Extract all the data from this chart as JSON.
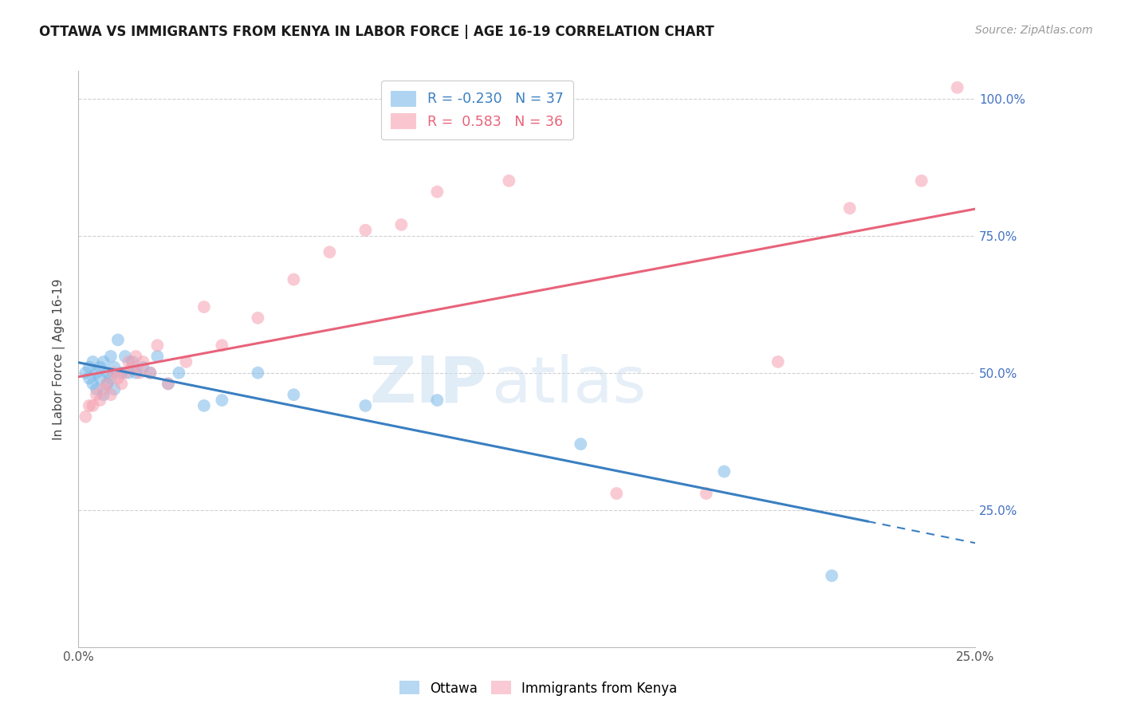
{
  "title": "OTTAWA VS IMMIGRANTS FROM KENYA IN LABOR FORCE | AGE 16-19 CORRELATION CHART",
  "source": "Source: ZipAtlas.com",
  "ylabel": "In Labor Force | Age 16-19",
  "xlim": [
    0.0,
    0.25
  ],
  "ylim": [
    0.0,
    1.05
  ],
  "ottawa_R": -0.23,
  "ottawa_N": 37,
  "kenya_R": 0.583,
  "kenya_N": 36,
  "ottawa_color": "#7ab8e8",
  "kenya_color": "#f5a0b0",
  "ottawa_line_color": "#3a7fc1",
  "kenya_line_color": "#e8637a",
  "watermark_zip": "ZIP",
  "watermark_atlas": "atlas",
  "grid_color": "#d0d0d0",
  "background_color": "#ffffff",
  "ottawa_scatter_x": [
    0.002,
    0.003,
    0.003,
    0.004,
    0.004,
    0.005,
    0.005,
    0.006,
    0.006,
    0.007,
    0.007,
    0.008,
    0.008,
    0.009,
    0.009,
    0.01,
    0.01,
    0.011,
    0.012,
    0.013,
    0.014,
    0.015,
    0.016,
    0.018,
    0.02,
    0.022,
    0.025,
    0.028,
    0.035,
    0.04,
    0.05,
    0.06,
    0.08,
    0.1,
    0.14,
    0.18,
    0.21
  ],
  "ottawa_scatter_y": [
    0.5,
    0.51,
    0.49,
    0.52,
    0.48,
    0.5,
    0.47,
    0.51,
    0.49,
    0.52,
    0.46,
    0.5,
    0.48,
    0.53,
    0.49,
    0.51,
    0.47,
    0.56,
    0.5,
    0.53,
    0.5,
    0.52,
    0.5,
    0.51,
    0.5,
    0.53,
    0.48,
    0.5,
    0.44,
    0.45,
    0.5,
    0.46,
    0.44,
    0.45,
    0.37,
    0.32,
    0.13
  ],
  "kenya_scatter_x": [
    0.002,
    0.003,
    0.004,
    0.005,
    0.006,
    0.007,
    0.008,
    0.009,
    0.01,
    0.011,
    0.012,
    0.013,
    0.014,
    0.015,
    0.016,
    0.017,
    0.018,
    0.02,
    0.022,
    0.025,
    0.03,
    0.035,
    0.04,
    0.05,
    0.06,
    0.07,
    0.08,
    0.09,
    0.1,
    0.12,
    0.15,
    0.175,
    0.195,
    0.215,
    0.235,
    0.245
  ],
  "kenya_scatter_y": [
    0.42,
    0.44,
    0.44,
    0.46,
    0.45,
    0.47,
    0.48,
    0.46,
    0.5,
    0.49,
    0.48,
    0.5,
    0.52,
    0.51,
    0.53,
    0.5,
    0.52,
    0.5,
    0.55,
    0.48,
    0.52,
    0.62,
    0.55,
    0.6,
    0.67,
    0.72,
    0.76,
    0.77,
    0.83,
    0.85,
    0.28,
    0.28,
    0.52,
    0.8,
    0.85,
    1.02
  ]
}
